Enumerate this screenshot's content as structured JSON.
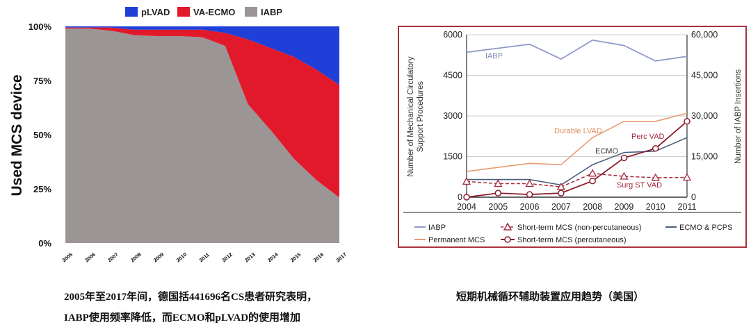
{
  "colors": {
    "plvad": "#1f3fd8",
    "vaecmo": "#e2192b",
    "iabp_area": "#9b9595",
    "frame": "#a8323d",
    "iabp_line": "#8e9bc8",
    "durable_line": "#e89b70",
    "ecmo_line": "#4a5f80",
    "perc_line": "#8b1d2c",
    "surg_line": "#a3283b"
  },
  "left_chart": {
    "legend": [
      "pLVAD",
      "VA-ECMO",
      "IABP"
    ],
    "y_title": "Used MCS device",
    "y_ticks": [
      "100%",
      "75%",
      "50%",
      "25%",
      "0%"
    ],
    "x_ticks": [
      "2005",
      "2006",
      "2007",
      "2008",
      "2009",
      "2010",
      "2011",
      "2012",
      "2013",
      "2014",
      "2015",
      "2016",
      "2017"
    ]
  },
  "right_chart": {
    "y_left_title_line1": "Number of Mechanical Circulatory",
    "y_left_title_line2": "Support Procedures",
    "y_right_title": "Number of IABP Insertions",
    "y_left_ticks": [
      "6000",
      "4500",
      "3000",
      "1500",
      "0"
    ],
    "y_right_ticks": [
      "60,000",
      "45,000",
      "30,000",
      "15,000",
      "0"
    ],
    "x_ticks": [
      "2004",
      "2005",
      "2006",
      "2007",
      "2008",
      "2009",
      "2010",
      "2011"
    ],
    "annotations": {
      "iabp": "IABP",
      "durable": "Durable LVAD",
      "perc": "Perc VAD",
      "ecmo": "ECMO",
      "surg": "Surg ST VAD"
    },
    "legend": {
      "iabp": "IABP",
      "short_non_perc": "Short-term MCS (non-percutaneous)",
      "ecmo_pcps": "ECMO & PCPS",
      "permanent": "Permanent MCS",
      "short_perc": "Short-term MCS (percutaneous)"
    }
  },
  "captions": {
    "left_line1": "2005年至2017年间，德国括441696名CS患者研究表明，",
    "left_line2": "IABP使用频率降低，而ECMO和pLVAD的使用增加",
    "right": "短期机械循环辅助装置应用趋势（美国）"
  },
  "chart_data": [
    {
      "type": "area",
      "x": [
        2005,
        2006,
        2007,
        2008,
        2009,
        2010,
        2011,
        2012,
        2013,
        2014,
        2015,
        2016,
        2017
      ],
      "series": [
        {
          "name": "IABP",
          "values": [
            99,
            99,
            98,
            96,
            95.5,
            95.5,
            95,
            91,
            64,
            52,
            39,
            29,
            21
          ]
        },
        {
          "name": "VA-ECMO",
          "values": [
            0.5,
            0.5,
            1.5,
            2.5,
            3,
            3,
            3.5,
            6,
            30,
            38,
            47,
            51,
            52
          ]
        },
        {
          "name": "pLVAD",
          "values": [
            0.5,
            0.5,
            0.5,
            1.5,
            1.5,
            1.5,
            1.5,
            3,
            6,
            10,
            14,
            20,
            27
          ]
        }
      ],
      "stacked": true,
      "ylabel": "Used MCS device",
      "ylim": [
        0,
        100
      ],
      "legend": "top"
    },
    {
      "type": "line",
      "x": [
        2004,
        2005,
        2006,
        2007,
        2008,
        2009,
        2010,
        2011
      ],
      "ylim": [
        0,
        6000
      ],
      "y2lim": [
        0,
        60000
      ],
      "series": [
        {
          "name": "IABP",
          "axis": "right",
          "values": [
            53500,
            55000,
            56500,
            51000,
            58000,
            56000,
            50300,
            52000
          ]
        },
        {
          "name": "Permanent MCS",
          "values": [
            950,
            1100,
            1250,
            1200,
            2200,
            2800,
            2800,
            3100
          ]
        },
        {
          "name": "ECMO & PCPS",
          "values": [
            650,
            650,
            650,
            450,
            1200,
            1650,
            1700,
            2200
          ]
        },
        {
          "name": "Short-term MCS (percutaneous)",
          "values": [
            0,
            150,
            100,
            150,
            600,
            1450,
            1800,
            2800
          ]
        },
        {
          "name": "Short-term MCS (non-percutaneous)",
          "values": [
            580,
            500,
            500,
            380,
            880,
            770,
            720,
            730
          ]
        }
      ],
      "ylabel": "Number of Mechanical Circulatory Support Procedures",
      "y2label": "Number of IABP Insertions",
      "legend": "bottom"
    }
  ]
}
